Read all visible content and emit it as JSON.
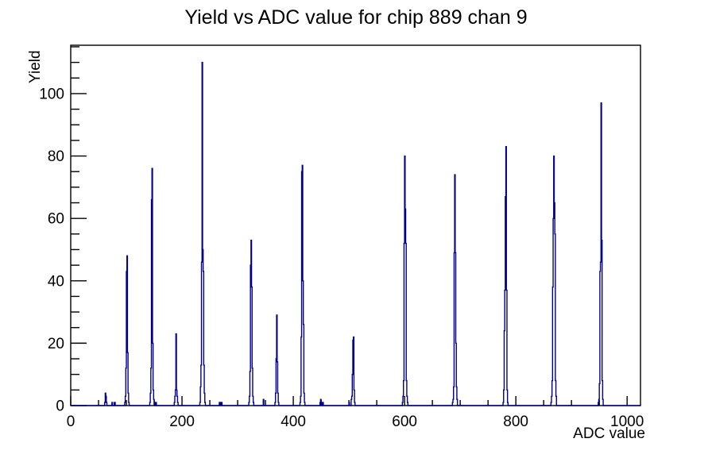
{
  "title": "Yield vs ADC value for chip 889 chan 9",
  "chart_data": {
    "type": "bar",
    "title": "Yield vs ADC value for chip 889 chan 9",
    "xlabel": "ADC value",
    "ylabel": "Yield",
    "xlim": [
      0,
      1024
    ],
    "ylim": [
      0,
      115.5
    ],
    "x_tick_values": [
      0,
      200,
      400,
      600,
      800,
      1000
    ],
    "x_tick_labels": [
      "0",
      "200",
      "400",
      "600",
      "800",
      "1000"
    ],
    "x_minor_step": 50,
    "y_tick_values": [
      0,
      20,
      40,
      60,
      80,
      100
    ],
    "y_tick_labels": [
      "0",
      "20",
      "40",
      "60",
      "80",
      "100"
    ],
    "y_minor_step": 5,
    "grid": false,
    "legend": false,
    "background_color": "#ffffff",
    "frame_color": "#000000",
    "line_color": "#00008b",
    "bin_width_adc": 1,
    "bins": [
      [
        61,
        1
      ],
      [
        62,
        4
      ],
      [
        63,
        3
      ],
      [
        64,
        1
      ],
      [
        74,
        1
      ],
      [
        78,
        1
      ],
      [
        79,
        1
      ],
      [
        97,
        1
      ],
      [
        98,
        3
      ],
      [
        99,
        12
      ],
      [
        100,
        43
      ],
      [
        101,
        48
      ],
      [
        102,
        17
      ],
      [
        103,
        4
      ],
      [
        104,
        1
      ],
      [
        142,
        1
      ],
      [
        143,
        4
      ],
      [
        144,
        12
      ],
      [
        145,
        66
      ],
      [
        146,
        76
      ],
      [
        147,
        20
      ],
      [
        148,
        5
      ],
      [
        149,
        2
      ],
      [
        150,
        1
      ],
      [
        153,
        1
      ],
      [
        186,
        1
      ],
      [
        187,
        3
      ],
      [
        188,
        5
      ],
      [
        189,
        23
      ],
      [
        190,
        5
      ],
      [
        191,
        3
      ],
      [
        192,
        1
      ],
      [
        232,
        1
      ],
      [
        233,
        6
      ],
      [
        234,
        13
      ],
      [
        235,
        46
      ],
      [
        236,
        110
      ],
      [
        237,
        50
      ],
      [
        238,
        43
      ],
      [
        239,
        13
      ],
      [
        240,
        4
      ],
      [
        241,
        1
      ],
      [
        267,
        1
      ],
      [
        268,
        1
      ],
      [
        270,
        1
      ],
      [
        271,
        1
      ],
      [
        320,
        1
      ],
      [
        321,
        3
      ],
      [
        322,
        11
      ],
      [
        323,
        45
      ],
      [
        324,
        53
      ],
      [
        325,
        38
      ],
      [
        326,
        12
      ],
      [
        327,
        3
      ],
      [
        328,
        1
      ],
      [
        346,
        2
      ],
      [
        367,
        1
      ],
      [
        368,
        4
      ],
      [
        369,
        15
      ],
      [
        370,
        29
      ],
      [
        371,
        14
      ],
      [
        372,
        4
      ],
      [
        373,
        1
      ],
      [
        412,
        1
      ],
      [
        413,
        3
      ],
      [
        414,
        22
      ],
      [
        415,
        75
      ],
      [
        416,
        77
      ],
      [
        417,
        40
      ],
      [
        418,
        26
      ],
      [
        419,
        4
      ],
      [
        420,
        1
      ],
      [
        448,
        1
      ],
      [
        449,
        2
      ],
      [
        452,
        1
      ],
      [
        453,
        1
      ],
      [
        500,
        1
      ],
      [
        504,
        2
      ],
      [
        505,
        3
      ],
      [
        506,
        10
      ],
      [
        507,
        21
      ],
      [
        508,
        22
      ],
      [
        509,
        5
      ],
      [
        510,
        1
      ],
      [
        596,
        1
      ],
      [
        597,
        3
      ],
      [
        598,
        8
      ],
      [
        599,
        52
      ],
      [
        600,
        80
      ],
      [
        601,
        63
      ],
      [
        602,
        52
      ],
      [
        603,
        8
      ],
      [
        604,
        3
      ],
      [
        605,
        1
      ],
      [
        686,
        1
      ],
      [
        687,
        2
      ],
      [
        688,
        6
      ],
      [
        689,
        49
      ],
      [
        690,
        74
      ],
      [
        691,
        49
      ],
      [
        692,
        20
      ],
      [
        693,
        6
      ],
      [
        694,
        2
      ],
      [
        777,
        1
      ],
      [
        778,
        5
      ],
      [
        779,
        24
      ],
      [
        780,
        37
      ],
      [
        781,
        67
      ],
      [
        782,
        83
      ],
      [
        783,
        37
      ],
      [
        784,
        5
      ],
      [
        785,
        1
      ],
      [
        863,
        1
      ],
      [
        864,
        3
      ],
      [
        865,
        8
      ],
      [
        866,
        38
      ],
      [
        867,
        60
      ],
      [
        868,
        80
      ],
      [
        869,
        65
      ],
      [
        870,
        55
      ],
      [
        871,
        8
      ],
      [
        872,
        3
      ],
      [
        948,
        1
      ],
      [
        949,
        2
      ],
      [
        950,
        7
      ],
      [
        951,
        43
      ],
      [
        952,
        46
      ],
      [
        953,
        97
      ],
      [
        954,
        53
      ],
      [
        955,
        8
      ],
      [
        956,
        2
      ]
    ],
    "peaks": [
      {
        "adc": 62,
        "yield": 4
      },
      {
        "adc": 101,
        "yield": 48
      },
      {
        "adc": 146,
        "yield": 76
      },
      {
        "adc": 189,
        "yield": 23
      },
      {
        "adc": 236,
        "yield": 110
      },
      {
        "adc": 324,
        "yield": 53
      },
      {
        "adc": 370,
        "yield": 29
      },
      {
        "adc": 416,
        "yield": 77
      },
      {
        "adc": 508,
        "yield": 22
      },
      {
        "adc": 600,
        "yield": 80
      },
      {
        "adc": 690,
        "yield": 74
      },
      {
        "adc": 782,
        "yield": 83
      },
      {
        "adc": 868,
        "yield": 80
      },
      {
        "adc": 953,
        "yield": 97
      }
    ]
  }
}
